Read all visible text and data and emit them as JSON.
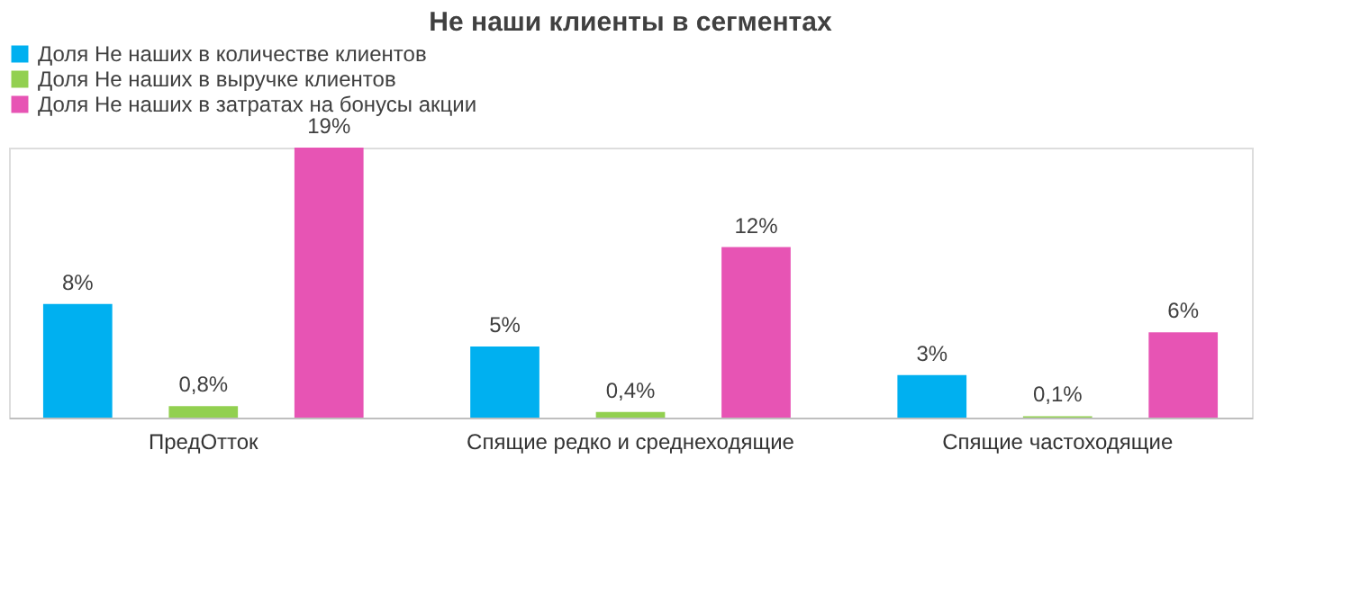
{
  "chart_data": {
    "type": "bar",
    "title": "Не наши клиенты в сегментах",
    "categories": [
      "ПредОтток",
      "Спящие редко и среднеходящие",
      "Спящие частоходящие"
    ],
    "series": [
      {
        "name": "Доля Не наших в количестве клиентов",
        "color": "#00b0f0",
        "values": [
          8,
          5,
          3
        ],
        "value_labels": [
          "8%",
          "5%",
          "3%"
        ]
      },
      {
        "name": "Доля Не наших в выручке клиентов",
        "color": "#92d050",
        "values": [
          0.8,
          0.4,
          0.1
        ],
        "value_labels": [
          "0,8%",
          "0,4%",
          "0,1%"
        ]
      },
      {
        "name": "Доля Не наших в затратах на бонусы акции",
        "color": "#e754b4",
        "values": [
          19,
          12,
          6
        ],
        "value_labels": [
          "19%",
          "12%",
          "6%"
        ]
      }
    ],
    "legend": "top",
    "grid": false,
    "tick_labels": "x"
  }
}
